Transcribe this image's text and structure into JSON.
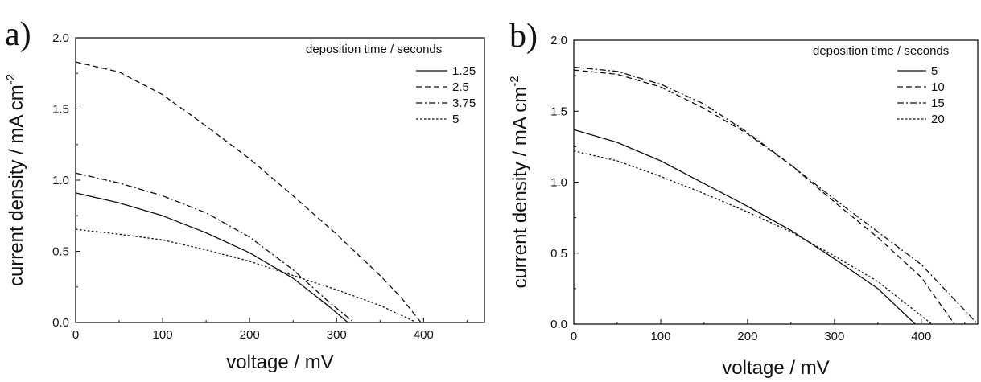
{
  "chart_data": [
    {
      "type": "line",
      "panel_label": "a)",
      "xlabel": "voltage / mV",
      "ylabel": "current density / mA cm",
      "ylabel_superscript": "-2",
      "xlim": [
        0,
        470
      ],
      "ylim": [
        0,
        2.0
      ],
      "xticks": [
        0,
        100,
        200,
        300,
        400
      ],
      "yticks": [
        0.0,
        0.5,
        1.0,
        1.5,
        2.0
      ],
      "ytick_labels": [
        "0.0",
        "0.5",
        "1.0",
        "1.5",
        "2.0"
      ],
      "grid": false,
      "legend": {
        "title": "deposition time / seconds",
        "position": "top-right",
        "entries": [
          "1.25",
          "2.5",
          "3.75",
          "5"
        ]
      },
      "series": [
        {
          "name": "1.25",
          "dash": "solid",
          "x": [
            0,
            50,
            100,
            150,
            200,
            250,
            290,
            313
          ],
          "y": [
            0.91,
            0.84,
            0.75,
            0.63,
            0.49,
            0.31,
            0.12,
            0.0
          ]
        },
        {
          "name": "2.5",
          "dash": "dash",
          "x": [
            0,
            50,
            100,
            150,
            200,
            250,
            300,
            350,
            375,
            397
          ],
          "y": [
            1.83,
            1.76,
            1.6,
            1.38,
            1.15,
            0.89,
            0.62,
            0.33,
            0.17,
            0.0
          ]
        },
        {
          "name": "3.75",
          "dash": "dashdot",
          "x": [
            0,
            50,
            100,
            150,
            200,
            250,
            290,
            320
          ],
          "y": [
            1.05,
            0.98,
            0.89,
            0.77,
            0.6,
            0.37,
            0.15,
            0.0
          ]
        },
        {
          "name": "5",
          "dash": "dot",
          "x": [
            0,
            50,
            100,
            150,
            200,
            250,
            300,
            350,
            392
          ],
          "y": [
            0.655,
            0.62,
            0.58,
            0.51,
            0.43,
            0.33,
            0.23,
            0.12,
            0.0
          ]
        }
      ]
    },
    {
      "type": "line",
      "panel_label": "b)",
      "xlabel": "voltage / mV",
      "ylabel": "current density / mA cm",
      "ylabel_superscript": "-2",
      "xlim": [
        0,
        465
      ],
      "ylim": [
        0,
        2.0
      ],
      "xticks": [
        0,
        100,
        200,
        300,
        400
      ],
      "yticks": [
        0.0,
        0.5,
        1.0,
        1.5,
        2.0
      ],
      "ytick_labels": [
        "0.0",
        "0.5",
        "1.0",
        "1.5",
        "2.0"
      ],
      "grid": false,
      "legend": {
        "title": "deposition time / seconds",
        "position": "top-right",
        "entries": [
          "5",
          "10",
          "15",
          "20"
        ]
      },
      "series": [
        {
          "name": "5",
          "dash": "solid",
          "x": [
            0,
            50,
            100,
            150,
            200,
            250,
            300,
            350,
            393
          ],
          "y": [
            1.37,
            1.28,
            1.15,
            0.99,
            0.83,
            0.66,
            0.46,
            0.25,
            0.0
          ]
        },
        {
          "name": "10",
          "dash": "dash",
          "x": [
            0,
            50,
            100,
            150,
            200,
            250,
            300,
            350,
            400,
            438
          ],
          "y": [
            1.79,
            1.76,
            1.67,
            1.52,
            1.34,
            1.12,
            0.86,
            0.61,
            0.33,
            0.0
          ]
        },
        {
          "name": "15",
          "dash": "dashdot",
          "x": [
            0,
            50,
            100,
            150,
            200,
            250,
            300,
            350,
            400,
            465
          ],
          "y": [
            1.81,
            1.78,
            1.69,
            1.55,
            1.35,
            1.12,
            0.88,
            0.65,
            0.42,
            0.0
          ]
        },
        {
          "name": "20",
          "dash": "dot",
          "x": [
            0,
            50,
            100,
            150,
            200,
            250,
            300,
            350,
            412
          ],
          "y": [
            1.22,
            1.15,
            1.04,
            0.92,
            0.79,
            0.65,
            0.48,
            0.3,
            0.0
          ]
        }
      ]
    }
  ]
}
